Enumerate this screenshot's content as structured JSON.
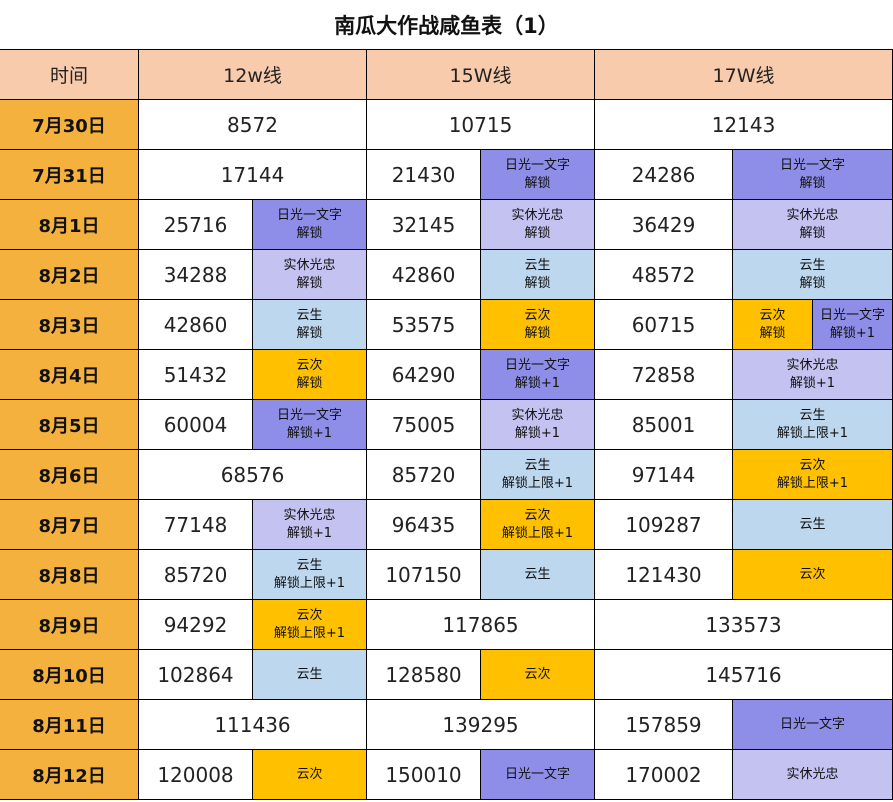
{
  "title": "南瓜大作战咸鱼表（1）",
  "headers": [
    "时间",
    "12w线",
    "15W线",
    "17W线"
  ],
  "colors": {
    "header_bg": "#f8cbad",
    "date_bg": "#f4b13e",
    "日光一文字": "#8e8ee8",
    "实休光忠": "#c4c2f0",
    "云生": "#bdd7ee",
    "云次": "#ffc000"
  },
  "rows": [
    {
      "date": "7月30日",
      "cols": [
        {
          "num": "8572",
          "tags": []
        },
        {
          "num": "10715",
          "tags": []
        },
        {
          "num": "12143",
          "tags": []
        }
      ]
    },
    {
      "date": "7月31日",
      "cols": [
        {
          "num": "17144",
          "tags": []
        },
        {
          "num": "21430",
          "tags": [
            {
              "name": "日光一文字",
              "note": "解锁"
            }
          ]
        },
        {
          "num": "24286",
          "tags": [
            {
              "name": "日光一文字",
              "note": "解锁"
            }
          ]
        }
      ]
    },
    {
      "date": "8月1日",
      "cols": [
        {
          "num": "25716",
          "tags": [
            {
              "name": "日光一文字",
              "note": "解锁"
            }
          ]
        },
        {
          "num": "32145",
          "tags": [
            {
              "name": "实休光忠",
              "note": "解锁"
            }
          ]
        },
        {
          "num": "36429",
          "tags": [
            {
              "name": "实休光忠",
              "note": "解锁"
            }
          ]
        }
      ]
    },
    {
      "date": "8月2日",
      "cols": [
        {
          "num": "34288",
          "tags": [
            {
              "name": "实休光忠",
              "note": "解锁"
            }
          ]
        },
        {
          "num": "42860",
          "tags": [
            {
              "name": "云生",
              "note": "解锁"
            }
          ]
        },
        {
          "num": "48572",
          "tags": [
            {
              "name": "云生",
              "note": "解锁"
            }
          ]
        }
      ]
    },
    {
      "date": "8月3日",
      "cols": [
        {
          "num": "42860",
          "tags": [
            {
              "name": "云生",
              "note": "解锁"
            }
          ]
        },
        {
          "num": "53575",
          "tags": [
            {
              "name": "云次",
              "note": "解锁"
            }
          ]
        },
        {
          "num": "60715",
          "tags": [
            {
              "name": "云次",
              "note": "解锁"
            },
            {
              "name": "日光一文字",
              "note": "解锁+1"
            }
          ]
        }
      ]
    },
    {
      "date": "8月4日",
      "cols": [
        {
          "num": "51432",
          "tags": [
            {
              "name": "云次",
              "note": "解锁"
            }
          ]
        },
        {
          "num": "64290",
          "tags": [
            {
              "name": "日光一文字",
              "note": "解锁+1"
            }
          ]
        },
        {
          "num": "72858",
          "tags": [
            {
              "name": "实休光忠",
              "note": "解锁+1"
            }
          ]
        }
      ]
    },
    {
      "date": "8月5日",
      "cols": [
        {
          "num": "60004",
          "tags": [
            {
              "name": "日光一文字",
              "note": "解锁+1"
            }
          ]
        },
        {
          "num": "75005",
          "tags": [
            {
              "name": "实休光忠",
              "note": "解锁+1"
            }
          ]
        },
        {
          "num": "85001",
          "tags": [
            {
              "name": "云生",
              "note": "解锁上限+1"
            }
          ]
        }
      ]
    },
    {
      "date": "8月6日",
      "cols": [
        {
          "num": "68576",
          "tags": []
        },
        {
          "num": "85720",
          "tags": [
            {
              "name": "云生",
              "note": "解锁上限+1"
            }
          ]
        },
        {
          "num": "97144",
          "tags": [
            {
              "name": "云次",
              "note": "解锁上限+1"
            }
          ]
        }
      ]
    },
    {
      "date": "8月7日",
      "cols": [
        {
          "num": "77148",
          "tags": [
            {
              "name": "实休光忠",
              "note": "解锁+1"
            }
          ]
        },
        {
          "num": "96435",
          "tags": [
            {
              "name": "云次",
              "note": "解锁上限+1"
            }
          ]
        },
        {
          "num": "109287",
          "tags": [
            {
              "name": "云生",
              "note": ""
            }
          ]
        }
      ]
    },
    {
      "date": "8月8日",
      "cols": [
        {
          "num": "85720",
          "tags": [
            {
              "name": "云生",
              "note": "解锁上限+1"
            }
          ]
        },
        {
          "num": "107150",
          "tags": [
            {
              "name": "云生",
              "note": ""
            }
          ]
        },
        {
          "num": "121430",
          "tags": [
            {
              "name": "云次",
              "note": ""
            }
          ]
        }
      ]
    },
    {
      "date": "8月9日",
      "cols": [
        {
          "num": "94292",
          "tags": [
            {
              "name": "云次",
              "note": "解锁上限+1"
            }
          ]
        },
        {
          "num": "117865",
          "tags": []
        },
        {
          "num": "133573",
          "tags": []
        }
      ]
    },
    {
      "date": "8月10日",
      "cols": [
        {
          "num": "102864",
          "tags": [
            {
              "name": "云生",
              "note": ""
            }
          ]
        },
        {
          "num": "128580",
          "tags": [
            {
              "name": "云次",
              "note": ""
            }
          ]
        },
        {
          "num": "145716",
          "tags": []
        }
      ]
    },
    {
      "date": "8月11日",
      "cols": [
        {
          "num": "111436",
          "tags": []
        },
        {
          "num": "139295",
          "tags": []
        },
        {
          "num": "157859",
          "tags": [
            {
              "name": "日光一文字",
              "note": ""
            }
          ]
        }
      ]
    },
    {
      "date": "8月12日",
      "cols": [
        {
          "num": "120008",
          "tags": [
            {
              "name": "云次",
              "note": ""
            }
          ]
        },
        {
          "num": "150010",
          "tags": [
            {
              "name": "日光一文字",
              "note": ""
            }
          ]
        },
        {
          "num": "170002",
          "tags": [
            {
              "name": "实休光忠",
              "note": ""
            }
          ]
        }
      ]
    }
  ]
}
